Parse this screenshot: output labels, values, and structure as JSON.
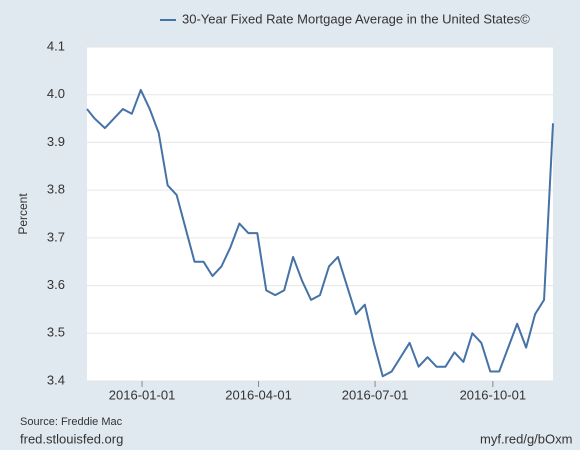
{
  "chart_data": {
    "type": "line",
    "y_label": "Percent",
    "source": "Source: Freddie Mac",
    "footer_left": "fred.stlouisfed.org",
    "footer_right": "myf.red/g/bOxm",
    "x": [
      "2015-11-19",
      "2015-11-25",
      "2015-12-03",
      "2015-12-10",
      "2015-12-17",
      "2015-12-24",
      "2015-12-31",
      "2016-01-07",
      "2016-01-14",
      "2016-01-21",
      "2016-01-28",
      "2016-02-04",
      "2016-02-11",
      "2016-02-18",
      "2016-02-25",
      "2016-03-03",
      "2016-03-10",
      "2016-03-17",
      "2016-03-24",
      "2016-03-31",
      "2016-04-07",
      "2016-04-14",
      "2016-04-21",
      "2016-04-28",
      "2016-05-05",
      "2016-05-12",
      "2016-05-19",
      "2016-05-26",
      "2016-06-02",
      "2016-06-09",
      "2016-06-16",
      "2016-06-23",
      "2016-06-30",
      "2016-07-07",
      "2016-07-14",
      "2016-07-21",
      "2016-07-28",
      "2016-08-04",
      "2016-08-11",
      "2016-08-18",
      "2016-08-25",
      "2016-09-01",
      "2016-09-08",
      "2016-09-15",
      "2016-09-22",
      "2016-09-29",
      "2016-10-06",
      "2016-10-13",
      "2016-10-20",
      "2016-10-27",
      "2016-11-03",
      "2016-11-10",
      "2016-11-17"
    ],
    "series": [
      {
        "name": "30-Year Fixed Rate Mortgage Average in the United States©",
        "color": "#4572a7",
        "values": [
          3.97,
          3.95,
          3.93,
          3.95,
          3.97,
          3.96,
          4.01,
          3.97,
          3.92,
          3.81,
          3.79,
          3.72,
          3.65,
          3.65,
          3.62,
          3.64,
          3.68,
          3.73,
          3.71,
          3.71,
          3.59,
          3.58,
          3.59,
          3.66,
          3.61,
          3.57,
          3.58,
          3.64,
          3.66,
          3.6,
          3.54,
          3.56,
          3.48,
          3.41,
          3.42,
          3.45,
          3.48,
          3.43,
          3.45,
          3.43,
          3.43,
          3.46,
          3.44,
          3.5,
          3.48,
          3.42,
          3.42,
          3.47,
          3.52,
          3.47,
          3.54,
          3.57,
          3.94
        ]
      }
    ],
    "xlim": [
      "2015-11-19",
      "2016-11-17"
    ],
    "xticks": [
      "2016-01-01",
      "2016-04-01",
      "2016-07-01",
      "2016-10-01"
    ],
    "ylim": [
      3.4,
      4.1
    ],
    "yticks": [
      3.4,
      3.5,
      3.6,
      3.7,
      3.8,
      3.9,
      {
        "value": 4,
        "label": "4.0"
      },
      4.1
    ],
    "grid": true
  }
}
